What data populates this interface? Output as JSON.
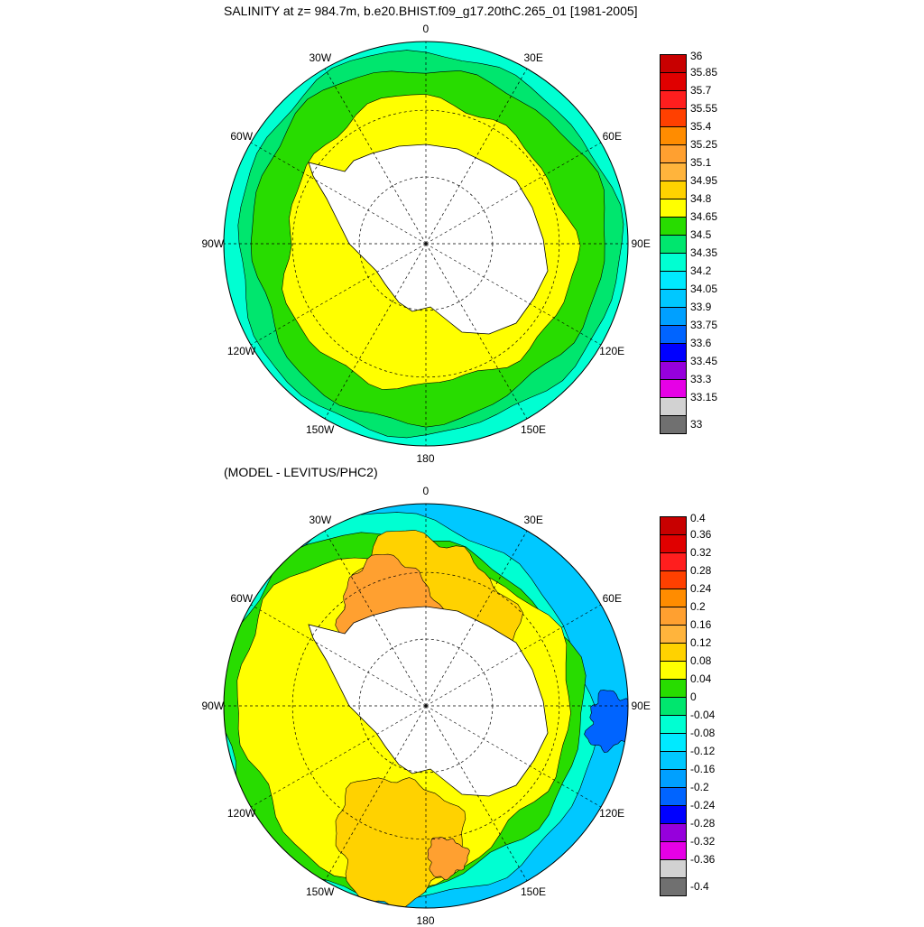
{
  "titles": {
    "top": "SALINITY at z= 984.7m, b.e20.BHIST.f09_g17.20thC.265_01 [1981-2005]",
    "bottom": "(MODEL - LEVITUS/PHC2)"
  },
  "lon_labels": [
    "0",
    "30E",
    "60E",
    "90E",
    "120E",
    "150E",
    "180",
    "150W",
    "120W",
    "90W",
    "60W",
    "30W"
  ],
  "colorbar_top": {
    "ticks": [
      "36",
      "35.85",
      "35.7",
      "35.55",
      "35.4",
      "35.25",
      "35.1",
      "34.95",
      "34.8",
      "34.65",
      "34.5",
      "34.35",
      "34.2",
      "34.05",
      "33.9",
      "33.75",
      "33.6",
      "33.45",
      "33.3",
      "33.15",
      "33"
    ],
    "colors": [
      "#c80000",
      "#e00000",
      "#ff1e1e",
      "#ff4000",
      "#ff8c00",
      "#ffa030",
      "#ffb43c",
      "#ffd200",
      "#ffff00",
      "#28dc00",
      "#00e66e",
      "#00ffd2",
      "#00eaff",
      "#00c8ff",
      "#00a0ff",
      "#0064ff",
      "#0000ff",
      "#9600dc",
      "#e600e6",
      "#d2d2d2",
      "#707070"
    ]
  },
  "colorbar_bottom": {
    "ticks": [
      "0.4",
      "0.36",
      "0.32",
      "0.28",
      "0.24",
      "0.2",
      "0.16",
      "0.12",
      "0.08",
      "0.04",
      "0",
      "-0.04",
      "-0.08",
      "-0.12",
      "-0.16",
      "-0.2",
      "-0.24",
      "-0.28",
      "-0.32",
      "-0.36",
      "-0.4"
    ],
    "colors": [
      "#c80000",
      "#e00000",
      "#ff1e1e",
      "#ff4000",
      "#ff8c00",
      "#ffa030",
      "#ffb43c",
      "#ffd200",
      "#ffff00",
      "#28dc00",
      "#00e66e",
      "#00ffd2",
      "#00eaff",
      "#00c8ff",
      "#00a0ff",
      "#0064ff",
      "#0000ff",
      "#9600dc",
      "#e600e6",
      "#d2d2d2",
      "#707070"
    ]
  },
  "map_colors": {
    "land": "#ffffff",
    "top_inner": "#ffff00",
    "top_mid": "#28dc00",
    "top_outer": "#00e66e",
    "top_edge": "#00ffd2",
    "bottom_base": "#ffff00",
    "bottom_warm": "#ffd200",
    "bottom_hot": "#ffa030",
    "bottom_green": "#28dc00",
    "bottom_cyan": "#00ffd2",
    "bottom_blue": "#00c8ff",
    "bottom_deep": "#0064ff"
  }
}
